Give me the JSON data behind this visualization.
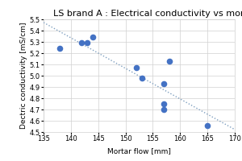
{
  "title": "LS brand A : Electrical conductivity vs mortar flow",
  "xlabel": "Mortar flow [mm]",
  "ylabel": "Dectric conductivity [mS/cm]",
  "xlim": [
    135,
    170
  ],
  "ylim": [
    4.5,
    5.5
  ],
  "xticks": [
    135,
    140,
    145,
    150,
    155,
    160,
    165,
    170
  ],
  "yticks": [
    4.5,
    4.6,
    4.7,
    4.8,
    4.9,
    5.0,
    5.1,
    5.2,
    5.3,
    5.4,
    5.5
  ],
  "scatter_x": [
    138,
    142,
    143,
    144,
    152,
    153,
    157,
    157,
    157,
    158,
    165
  ],
  "scatter_y": [
    5.24,
    5.29,
    5.29,
    5.34,
    5.07,
    4.98,
    4.93,
    4.75,
    4.7,
    5.13,
    4.56
  ],
  "dot_color": "#4472c4",
  "dot_size": 30,
  "trendline_color": "#7f9fbf",
  "background_color": "#ffffff",
  "grid_color": "#d0d0d0",
  "title_fontsize": 8,
  "label_fontsize": 6.5,
  "tick_fontsize": 6
}
